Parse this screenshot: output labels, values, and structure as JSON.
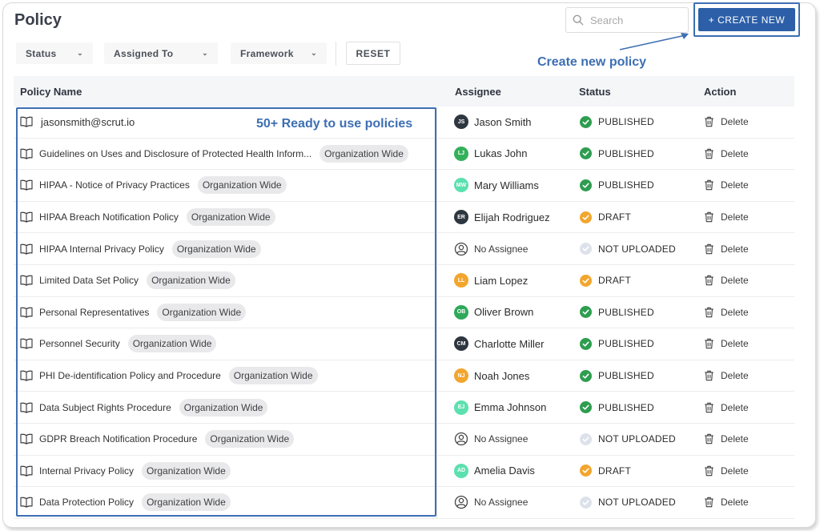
{
  "header": {
    "title": "Policy",
    "search_placeholder": "Search",
    "create_label": "+ CREATE NEW"
  },
  "filters": {
    "status": "Status",
    "assigned_to": "Assigned To",
    "framework": "Framework",
    "reset": "RESET"
  },
  "annotations": {
    "create": "Create new policy",
    "ready": "50+ Ready to use policies"
  },
  "table": {
    "columns": [
      "Policy Name",
      "Assignee",
      "Status",
      "Action"
    ],
    "rows": [
      {
        "name": "jasonsmith@scrut.io",
        "tag": "",
        "initials": "JS",
        "avatar_color": "#2e3640",
        "assignee": "Jason Smith",
        "status": "PUBLISHED",
        "action": "Delete"
      },
      {
        "name": "Guidelines on Uses and Disclosure of Protected Health Inform...",
        "tag": "Organization Wide",
        "initials": "LJ",
        "avatar_color": "#35b05a",
        "assignee": "Lukas John",
        "status": "PUBLISHED",
        "action": "Delete"
      },
      {
        "name": "HIPAA - Notice of Privacy Practices",
        "tag": "Organization Wide",
        "initials": "MW",
        "avatar_color": "#5ce0b0",
        "assignee": "Mary Williams",
        "status": "PUBLISHED",
        "action": "Delete"
      },
      {
        "name": "HIPAA Breach Notification Policy",
        "tag": "Organization Wide",
        "initials": "ER",
        "avatar_color": "#2e3640",
        "assignee": "Elijah Rodriguez",
        "status": "DRAFT",
        "action": "Delete"
      },
      {
        "name": "HIPAA Internal Privacy Policy",
        "tag": "Organization Wide",
        "initials": "",
        "avatar_color": "",
        "assignee": "No Assignee",
        "status": "NOT UPLOADED",
        "action": "Delete"
      },
      {
        "name": "Limited Data Set Policy",
        "tag": "Organization Wide",
        "initials": "LL",
        "avatar_color": "#f2a62e",
        "assignee": "Liam Lopez",
        "status": "DRAFT",
        "action": "Delete"
      },
      {
        "name": "Personal Representatives",
        "tag": "Organization Wide",
        "initials": "OB",
        "avatar_color": "#2fa85a",
        "assignee": "Oliver Brown",
        "status": "PUBLISHED",
        "action": "Delete"
      },
      {
        "name": "Personnel Security",
        "tag": "Organization Wide",
        "initials": "CM",
        "avatar_color": "#2e3640",
        "assignee": "Charlotte Miller",
        "status": "PUBLISHED",
        "action": "Delete"
      },
      {
        "name": "PHI De-identification Policy and Procedure",
        "tag": "Organization Wide",
        "initials": "NJ",
        "avatar_color": "#f2a62e",
        "assignee": "Noah Jones",
        "status": "PUBLISHED",
        "action": "Delete"
      },
      {
        "name": "Data Subject Rights Procedure",
        "tag": "Organization Wide",
        "initials": "EJ",
        "avatar_color": "#5ce0b0",
        "assignee": "Emma Johnson",
        "status": "PUBLISHED",
        "action": "Delete"
      },
      {
        "name": "GDPR Breach Notification Procedure",
        "tag": "Organization Wide",
        "initials": "",
        "avatar_color": "",
        "assignee": "No Assignee",
        "status": "NOT UPLOADED",
        "action": "Delete"
      },
      {
        "name": "Internal Privacy Policy",
        "tag": "Organization Wide",
        "initials": "AD",
        "avatar_color": "#5ce0b0",
        "assignee": "Amelia Davis",
        "status": "DRAFT",
        "action": "Delete"
      },
      {
        "name": "Data Protection Policy",
        "tag": "Organization Wide",
        "initials": "",
        "avatar_color": "",
        "assignee": "No Assignee",
        "status": "NOT UPLOADED",
        "action": "Delete"
      }
    ]
  },
  "colors": {
    "accent": "#2c5fa8",
    "annotation": "#3d6fb3",
    "published": "#2e9d4f",
    "draft": "#f2a62e",
    "not_uploaded": "#dde2ea"
  },
  "icons": {
    "search": "search-icon",
    "policy": "book-icon",
    "no_assignee": "user-circle-icon",
    "delete": "trash-icon",
    "filter": "chevron-down-icon"
  }
}
